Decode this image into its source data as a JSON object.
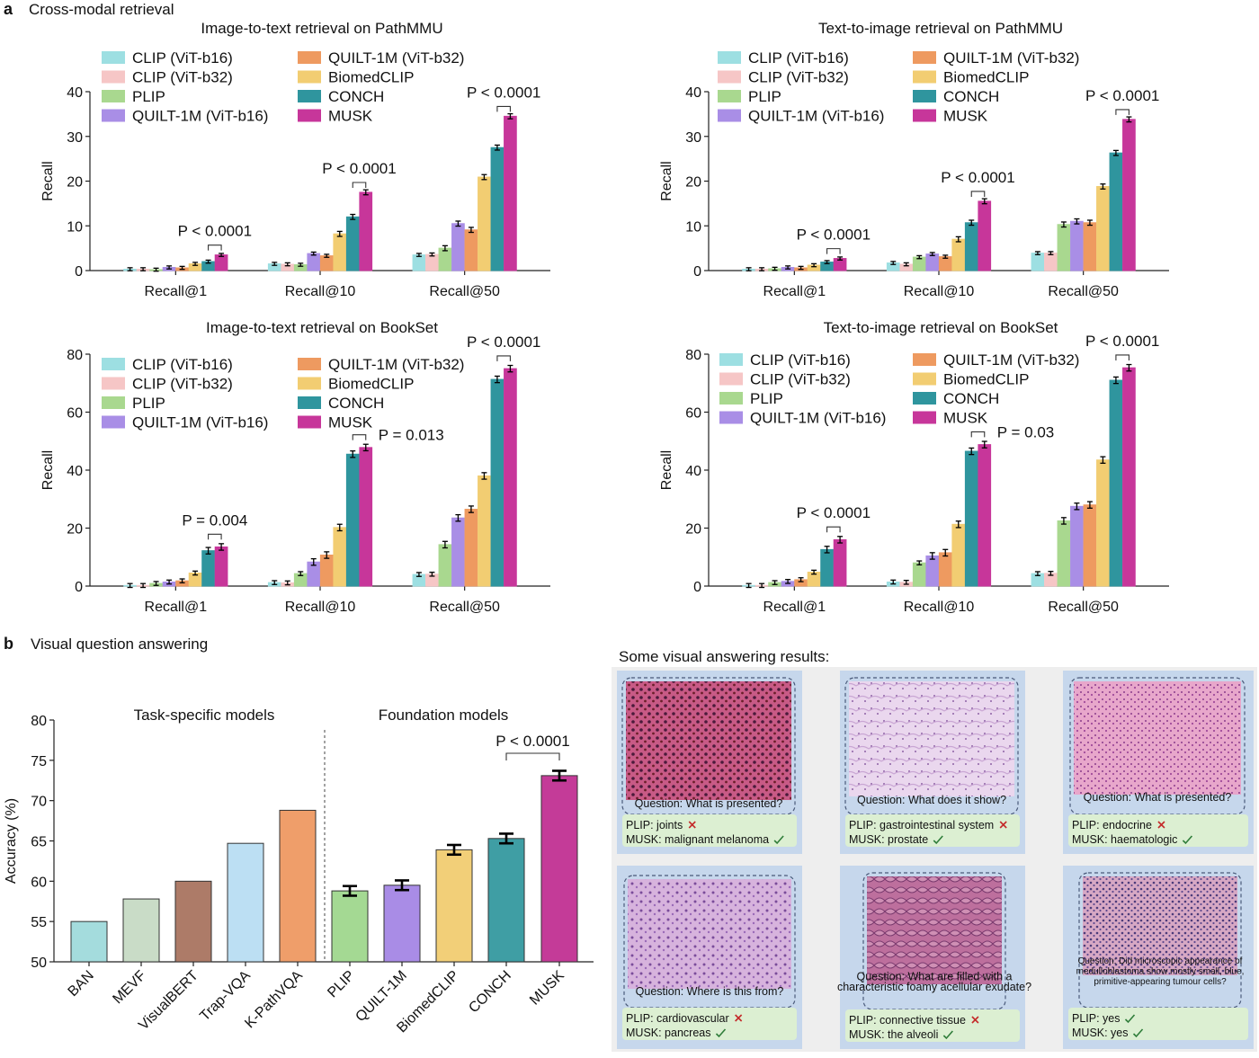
{
  "panel_a_letter": "a",
  "panel_a_title": "Cross-modal retrieval",
  "panel_b_letter": "b",
  "panel_b_title": "Visual question answering",
  "models": [
    "CLIP (ViT-b16)",
    "CLIP (ViT-b32)",
    "PLIP",
    "QUILT-1M (ViT-b16)",
    "QUILT-1M (ViT-b32)",
    "BiomedCLIP",
    "CONCH",
    "MUSK"
  ],
  "model_colors": [
    "#9ddfe2",
    "#f6c6c6",
    "#a9d88f",
    "#a98ee6",
    "#ee9a60",
    "#f2cd72",
    "#2f959e",
    "#c7369a"
  ],
  "chart_data": [
    {
      "type": "bar",
      "title": "Image-to-text retrieval on PathMMU",
      "xlabel": "",
      "ylabel": "Recall",
      "ylim": [
        0,
        40
      ],
      "yticks": [
        0,
        10,
        20,
        30,
        40
      ],
      "categories": [
        "Recall@1",
        "Recall@10",
        "Recall@50"
      ],
      "legend": "top-left",
      "series": [
        {
          "name": "CLIP (ViT-b16)",
          "values": [
            0.3,
            1.5,
            3.5
          ]
        },
        {
          "name": "CLIP (ViT-b32)",
          "values": [
            0.3,
            1.4,
            3.6
          ]
        },
        {
          "name": "PLIP",
          "values": [
            0.2,
            1.3,
            5.0
          ]
        },
        {
          "name": "QUILT-1M (ViT-b16)",
          "values": [
            0.7,
            3.8,
            10.5
          ]
        },
        {
          "name": "QUILT-1M (ViT-b32)",
          "values": [
            0.6,
            3.3,
            9.1
          ]
        },
        {
          "name": "BiomedCLIP",
          "values": [
            1.5,
            8.2,
            20.9
          ]
        },
        {
          "name": "CONCH",
          "values": [
            2.0,
            12.0,
            27.5
          ]
        },
        {
          "name": "MUSK",
          "values": [
            3.5,
            17.5,
            34.5
          ]
        }
      ],
      "annotations": [
        "P < 0.0001",
        "P < 0.0001",
        "P < 0.0001"
      ]
    },
    {
      "type": "bar",
      "title": "Text-to-image retrieval on PathMMU",
      "xlabel": "",
      "ylabel": "Recall",
      "ylim": [
        0,
        40
      ],
      "yticks": [
        0,
        10,
        20,
        30,
        40
      ],
      "categories": [
        "Recall@1",
        "Recall@10",
        "Recall@50"
      ],
      "legend": "top-left",
      "series": [
        {
          "name": "CLIP (ViT-b16)",
          "values": [
            0.3,
            1.7,
            3.9
          ]
        },
        {
          "name": "CLIP (ViT-b32)",
          "values": [
            0.3,
            1.4,
            3.9
          ]
        },
        {
          "name": "PLIP",
          "values": [
            0.4,
            3.0,
            10.3
          ]
        },
        {
          "name": "QUILT-1M (ViT-b16)",
          "values": [
            0.7,
            3.7,
            11.0
          ]
        },
        {
          "name": "QUILT-1M (ViT-b32)",
          "values": [
            0.6,
            3.1,
            10.7
          ]
        },
        {
          "name": "BiomedCLIP",
          "values": [
            1.2,
            7.0,
            18.8
          ]
        },
        {
          "name": "CONCH",
          "values": [
            1.9,
            10.7,
            26.3
          ]
        },
        {
          "name": "MUSK",
          "values": [
            2.7,
            15.5,
            33.8
          ]
        }
      ],
      "annotations": [
        "P < 0.0001",
        "P < 0.0001",
        "P < 0.0001"
      ]
    },
    {
      "type": "bar",
      "title": "Image-to-text retrieval on BookSet",
      "xlabel": "",
      "ylabel": "Recall",
      "ylim": [
        0,
        80
      ],
      "yticks": [
        0,
        20,
        40,
        60,
        80
      ],
      "categories": [
        "Recall@1",
        "Recall@10",
        "Recall@50"
      ],
      "legend": "top-left",
      "series": [
        {
          "name": "CLIP (ViT-b16)",
          "values": [
            0.2,
            1.2,
            4.0
          ]
        },
        {
          "name": "CLIP (ViT-b32)",
          "values": [
            0.2,
            1.1,
            4.1
          ]
        },
        {
          "name": "PLIP",
          "values": [
            0.9,
            4.3,
            14.3
          ]
        },
        {
          "name": "QUILT-1M (ViT-b16)",
          "values": [
            1.4,
            8.3,
            23.5
          ]
        },
        {
          "name": "QUILT-1M (ViT-b32)",
          "values": [
            1.8,
            10.7,
            26.5
          ]
        },
        {
          "name": "BiomedCLIP",
          "values": [
            4.5,
            20.2,
            38.0
          ]
        },
        {
          "name": "CONCH",
          "values": [
            12.2,
            45.5,
            71.3
          ]
        },
        {
          "name": "MUSK",
          "values": [
            13.5,
            47.8,
            75.0
          ]
        }
      ],
      "annotations": [
        "P = 0.004",
        "P = 0.013",
        "P < 0.0001"
      ]
    },
    {
      "type": "bar",
      "title": "Text-to-image retrieval on BookSet",
      "xlabel": "",
      "ylabel": "Recall",
      "ylim": [
        0,
        80
      ],
      "yticks": [
        0,
        20,
        40,
        60,
        80
      ],
      "categories": [
        "Recall@1",
        "Recall@10",
        "Recall@50"
      ],
      "legend": "top-left",
      "series": [
        {
          "name": "CLIP (ViT-b16)",
          "values": [
            0.2,
            1.4,
            4.3
          ]
        },
        {
          "name": "CLIP (ViT-b32)",
          "values": [
            0.2,
            1.3,
            4.4
          ]
        },
        {
          "name": "PLIP",
          "values": [
            1.2,
            8.0,
            22.5
          ]
        },
        {
          "name": "QUILT-1M (ViT-b16)",
          "values": [
            1.6,
            10.4,
            27.5
          ]
        },
        {
          "name": "QUILT-1M (ViT-b32)",
          "values": [
            2.2,
            11.5,
            28.0
          ]
        },
        {
          "name": "BiomedCLIP",
          "values": [
            4.8,
            21.3,
            43.5
          ]
        },
        {
          "name": "CONCH",
          "values": [
            12.6,
            46.5,
            71.0
          ]
        },
        {
          "name": "MUSK",
          "values": [
            16.0,
            48.8,
            75.3
          ]
        }
      ],
      "annotations": [
        "P < 0.0001",
        "P = 0.03",
        "P < 0.0001"
      ]
    },
    {
      "type": "bar",
      "title": "",
      "xlabel": "",
      "ylabel": "Accuracy (%)",
      "ylim": [
        50,
        80
      ],
      "yticks": [
        50,
        55,
        60,
        65,
        70,
        75,
        80
      ],
      "group_labels": [
        "Task-specific models",
        "Foundation models"
      ],
      "categories": [
        "BAN",
        "MEVF",
        "VisualBERT",
        "Trap-VQA",
        "K-PathVQA",
        "PLIP",
        "QUILT-1M",
        "BiomedCLIP",
        "CONCH",
        "MUSK"
      ],
      "values": [
        55.0,
        57.8,
        60.0,
        64.7,
        68.8,
        58.8,
        59.5,
        63.9,
        65.3,
        73.1
      ],
      "error_bars": [
        false,
        false,
        false,
        false,
        false,
        true,
        true,
        true,
        true,
        true
      ],
      "colors": [
        "#a4dcdd",
        "#c9dcc7",
        "#ad7b68",
        "#bcdff3",
        "#ef9e6a",
        "#a4d993",
        "#a98ce6",
        "#f2cf78",
        "#3f9ea4",
        "#c43b98"
      ],
      "annotations": [
        "P < 0.0001"
      ]
    }
  ],
  "vqa_results": {
    "title": "Some visual answering results:",
    "items": [
      {
        "question": "Question: What is presented?",
        "plip": "PLIP: joints",
        "musk": "MUSK: malignant melanoma",
        "plip_ok": false,
        "musk_ok": true
      },
      {
        "question": "Question: What does it show?",
        "plip": "PLIP: gastrointestinal system",
        "musk": "MUSK: prostate",
        "plip_ok": false,
        "musk_ok": true
      },
      {
        "question": "Question: What is presented?",
        "plip": "PLIP: endocrine",
        "musk": "MUSK: haematologic",
        "plip_ok": false,
        "musk_ok": true
      },
      {
        "question": "Question: Where is this from?",
        "plip": "PLIP: cardiovascular",
        "musk": "MUSK: pancreas",
        "plip_ok": false,
        "musk_ok": true
      },
      {
        "question_lines": [
          "Question: What are filled with a",
          "characteristic foamy acellular exudate?"
        ],
        "plip": "PLIP: connective tissue",
        "musk": "MUSK: the alveoli",
        "plip_ok": false,
        "musk_ok": true
      },
      {
        "question_lines": [
          "Question: Did microscopic appearance of",
          "medulloblastoma show mostly small, blue,",
          "primitive-appearing tumour cells?"
        ],
        "plip": "PLIP: yes",
        "musk": "MUSK: yes",
        "plip_ok": true,
        "musk_ok": true
      }
    ]
  }
}
